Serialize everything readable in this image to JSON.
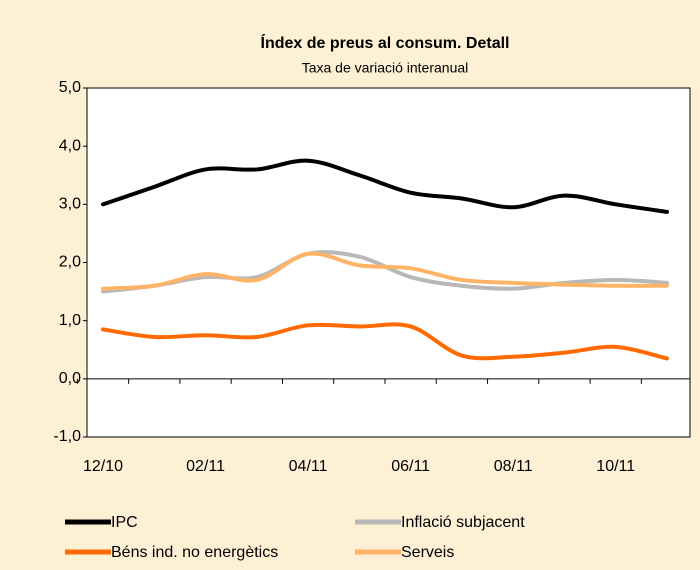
{
  "chart_data": {
    "type": "line",
    "title": "Índex de preus al consum. Detall",
    "subtitle": "Taxa de variació interanual",
    "categories": [
      "12/10",
      null,
      "02/11",
      null,
      "04/11",
      null,
      "06/11",
      null,
      "08/11",
      null,
      "10/11",
      null
    ],
    "series": [
      {
        "name": "IPC",
        "color": "#000000",
        "values": [
          3.0,
          3.3,
          3.6,
          3.6,
          3.75,
          3.5,
          3.2,
          3.1,
          2.95,
          3.15,
          3.0,
          2.87
        ]
      },
      {
        "name": "Inflació subjacent",
        "color": "#b8b8b8",
        "values": [
          1.5,
          1.6,
          1.75,
          1.75,
          2.15,
          2.1,
          1.75,
          1.6,
          1.55,
          1.65,
          1.7,
          1.65
        ]
      },
      {
        "name": "Béns ind. no energètics",
        "color": "#ff6a00",
        "values": [
          0.85,
          0.72,
          0.75,
          0.72,
          0.92,
          0.9,
          0.9,
          0.4,
          0.38,
          0.45,
          0.55,
          0.35
        ]
      },
      {
        "name": "Serveis",
        "color": "#ffb366",
        "values": [
          1.55,
          1.6,
          1.8,
          1.7,
          2.15,
          1.95,
          1.9,
          1.7,
          1.65,
          1.62,
          1.6,
          1.6
        ]
      }
    ],
    "ylim": [
      -1,
      5
    ],
    "yticks": [
      {
        "value": -1,
        "label": "-1,0"
      },
      {
        "value": 0,
        "label": "0,0"
      },
      {
        "value": 1,
        "label": "1,0"
      },
      {
        "value": 2,
        "label": "2,0"
      },
      {
        "value": 3,
        "label": "3,0"
      },
      {
        "value": 4,
        "label": "4,0"
      },
      {
        "value": 5,
        "label": "5,0"
      }
    ],
    "grid": false,
    "legend": "bottom"
  }
}
